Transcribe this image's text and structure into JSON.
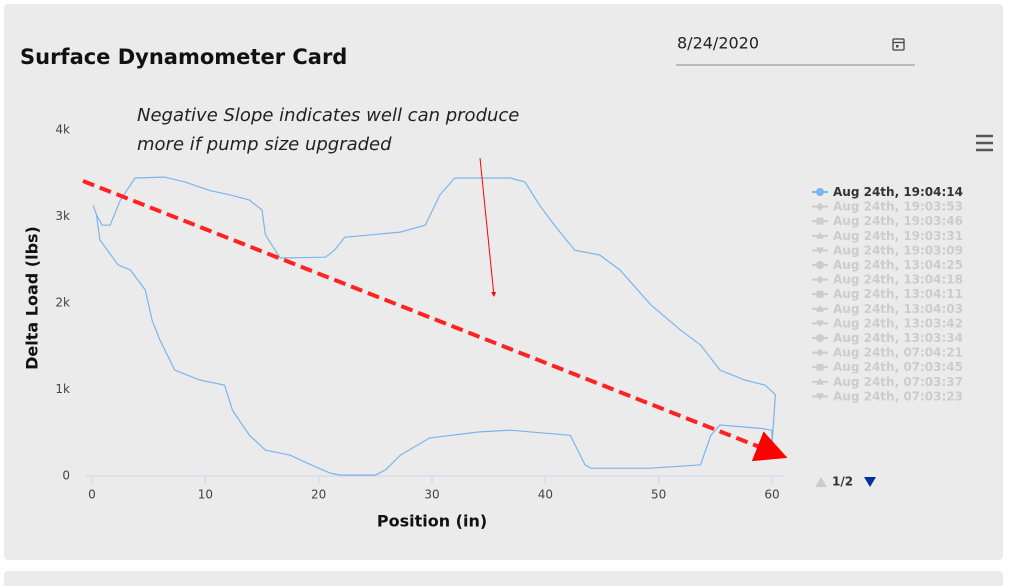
{
  "header": {
    "title": "Surface Dynamometer Card",
    "date": "8/24/2020"
  },
  "chart_data": {
    "type": "line",
    "xlabel": "Position (in)",
    "ylabel": "Delta Load (lbs)",
    "annotation": [
      "Negative Slope indicates well can produce",
      "more if pump size upgraded"
    ],
    "xlim": [
      0,
      60
    ],
    "xticks": [
      0,
      10,
      20,
      30,
      40,
      50,
      60
    ],
    "ylim": [
      0,
      4000
    ],
    "yticks": [
      0,
      {
        "value": 1000,
        "label": "1k"
      },
      {
        "value": 2000,
        "label": "2k"
      },
      {
        "value": 3000,
        "label": "3k"
      },
      {
        "value": 4000,
        "label": "4k"
      }
    ],
    "x": [
      0.1,
      0.4,
      0.7,
      2.3,
      3.4,
      4.7,
      5.3,
      6.0,
      7.3,
      9.5,
      11.7,
      12.4,
      13.9,
      15.3,
      17.5,
      18.8,
      21.0,
      21.9,
      25.0,
      25.9,
      27.2,
      29.8,
      34.2,
      36.9,
      42.2,
      43.5,
      44.0,
      49.3,
      53.7,
      54.6,
      55.4,
      59.0,
      60.0,
      60.0,
      60.3,
      59.4,
      57.6,
      55.4,
      53.7,
      51.9,
      49.3,
      46.6,
      44.8,
      42.6,
      40.8,
      39.5,
      38.2,
      36.9,
      32.0,
      30.7,
      29.4,
      27.2,
      22.3,
      21.4,
      20.6,
      16.6,
      15.3,
      15.0,
      13.9,
      12.2,
      10.4,
      8.2,
      6.4,
      3.8,
      2.5,
      1.6,
      0.9,
      0.4,
      0.1
    ],
    "series": [
      {
        "name": "Aug 24th, 19:04:14",
        "color": "#7cb5ec",
        "visible": true,
        "values": [
          3130,
          3020,
          2730,
          2440,
          2380,
          2150,
          1800,
          1570,
          1225,
          1110,
          1050,
          760,
          470,
          300,
          240,
          160,
          35,
          10,
          10,
          70,
          240,
          440,
          510,
          530,
          470,
          130,
          90,
          90,
          130,
          470,
          590,
          550,
          530,
          360,
          940,
          1050,
          1110,
          1225,
          1515,
          1690,
          1980,
          2380,
          2555,
          2610,
          2900,
          3130,
          3400,
          3445,
          3445,
          3250,
          2900,
          2820,
          2760,
          2610,
          2530,
          2520,
          2790,
          3075,
          3190,
          3250,
          3300,
          3400,
          3455,
          3445,
          3190,
          2900,
          2900,
          3020,
          3130
        ]
      },
      {
        "name": "Aug 24th, 19:03:53",
        "color": "#cccccc",
        "visible": false
      },
      {
        "name": "Aug 24th, 19:03:46",
        "color": "#cccccc",
        "visible": false
      },
      {
        "name": "Aug 24th, 19:03:31",
        "color": "#cccccc",
        "visible": false
      },
      {
        "name": "Aug 24th, 19:03:09",
        "color": "#cccccc",
        "visible": false
      },
      {
        "name": "Aug 24th, 13:04:25",
        "color": "#cccccc",
        "visible": false
      },
      {
        "name": "Aug 24th, 13:04:18",
        "color": "#cccccc",
        "visible": false
      },
      {
        "name": "Aug 24th, 13:04:11",
        "color": "#cccccc",
        "visible": false
      },
      {
        "name": "Aug 24th, 13:04:03",
        "color": "#cccccc",
        "visible": false
      },
      {
        "name": "Aug 24th, 13:03:42",
        "color": "#cccccc",
        "visible": false
      },
      {
        "name": "Aug 24th, 13:03:34",
        "color": "#cccccc",
        "visible": false
      },
      {
        "name": "Aug 24th, 07:04:21",
        "color": "#cccccc",
        "visible": false
      },
      {
        "name": "Aug 24th, 07:03:45",
        "color": "#cccccc",
        "visible": false
      },
      {
        "name": "Aug 24th, 07:03:37",
        "color": "#cccccc",
        "visible": false
      },
      {
        "name": "Aug 24th, 07:03:23",
        "color": "#cccccc",
        "visible": false
      }
    ],
    "legend_page": "1/2"
  }
}
